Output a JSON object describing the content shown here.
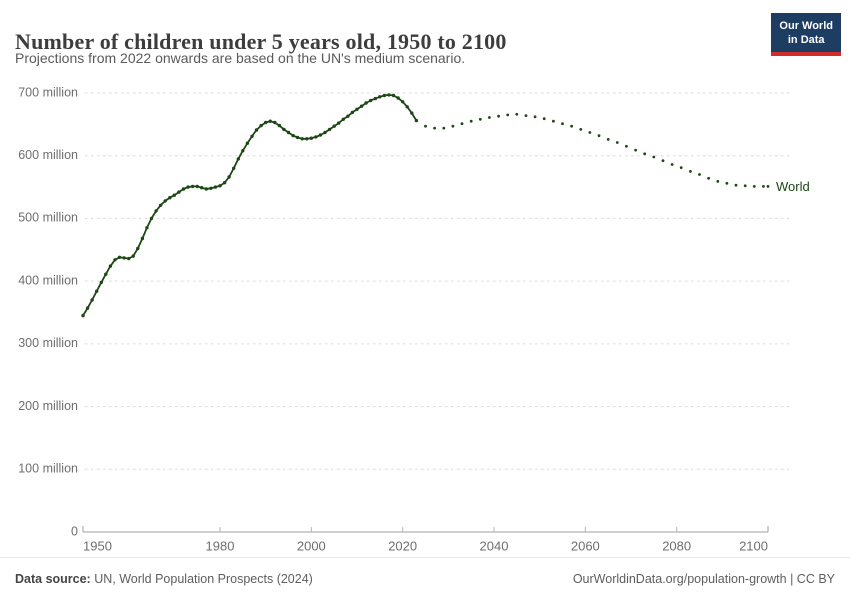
{
  "header": {
    "title": "Number of children under 5 years old, 1950 to 2100",
    "subtitle": "Projections from 2022 onwards are based on the UN's medium scenario.",
    "logo": {
      "line1": "Our World",
      "line2": "in Data",
      "bg_color": "#1d3d63",
      "accent_color": "#d42b2b"
    }
  },
  "chart_data": {
    "type": "line",
    "title": "Number of children under 5 years old, 1950 to 2100",
    "series_label": "World",
    "line_color": "#1d4715",
    "unit": "million",
    "xlabel": "",
    "ylabel": "",
    "x_range": [
      1950,
      2100
    ],
    "y_range": [
      0,
      700000000
    ],
    "grid": "horizontal dashed",
    "legend_position": "right end of line",
    "projection_style": "dotted from 2023 onwards",
    "x_ticks": [
      1950,
      1980,
      2000,
      2020,
      2040,
      2060,
      2080,
      2100
    ],
    "y_ticks": [
      {
        "v": 0,
        "label": "0"
      },
      {
        "v": 100,
        "label": "100 million"
      },
      {
        "v": 200,
        "label": "200 million"
      },
      {
        "v": 300,
        "label": "300 million"
      },
      {
        "v": 400,
        "label": "400 million"
      },
      {
        "v": 500,
        "label": "500 million"
      },
      {
        "v": 600,
        "label": "600 million"
      },
      {
        "v": 700,
        "label": "700 million"
      }
    ],
    "series": [
      {
        "name": "World (historical, millions)",
        "style": "solid",
        "years": [
          1950,
          1951,
          1952,
          1953,
          1954,
          1955,
          1956,
          1957,
          1958,
          1959,
          1960,
          1961,
          1962,
          1963,
          1964,
          1965,
          1966,
          1967,
          1968,
          1969,
          1970,
          1971,
          1972,
          1973,
          1974,
          1975,
          1976,
          1977,
          1978,
          1979,
          1980,
          1981,
          1982,
          1983,
          1984,
          1985,
          1986,
          1987,
          1988,
          1989,
          1990,
          1991,
          1992,
          1993,
          1994,
          1995,
          1996,
          1997,
          1998,
          1999,
          2000,
          2001,
          2002,
          2003,
          2004,
          2005,
          2006,
          2007,
          2008,
          2009,
          2010,
          2011,
          2012,
          2013,
          2014,
          2015,
          2016,
          2017,
          2018,
          2019,
          2020,
          2021,
          2022,
          2023
        ],
        "values": [
          345,
          357,
          370,
          384,
          398,
          411,
          424,
          434,
          438,
          437,
          436,
          440,
          452,
          468,
          485,
          500,
          512,
          521,
          528,
          533,
          537,
          542,
          547,
          550,
          551,
          551,
          549,
          547,
          548,
          550,
          552,
          557,
          566,
          580,
          595,
          608,
          620,
          631,
          641,
          648,
          653,
          655,
          653,
          648,
          642,
          637,
          632,
          629,
          627,
          627,
          628,
          630,
          633,
          637,
          642,
          647,
          652,
          658,
          663,
          669,
          674,
          679,
          684,
          688,
          691,
          694,
          696,
          697,
          696,
          692,
          686,
          678,
          668,
          656
        ]
      },
      {
        "name": "World (UN medium projection, millions)",
        "style": "dotted",
        "years": [
          2023,
          2025,
          2027,
          2029,
          2031,
          2033,
          2035,
          2037,
          2039,
          2041,
          2043,
          2045,
          2047,
          2049,
          2051,
          2053,
          2055,
          2057,
          2059,
          2061,
          2063,
          2065,
          2067,
          2069,
          2071,
          2073,
          2075,
          2077,
          2079,
          2081,
          2083,
          2085,
          2087,
          2089,
          2091,
          2093,
          2095,
          2097,
          2099,
          2100
        ],
        "values": [
          656,
          647,
          644,
          644,
          647,
          651,
          655,
          658,
          661,
          663,
          665,
          666,
          664,
          662,
          659,
          655,
          651,
          647,
          642,
          637,
          632,
          626,
          621,
          615,
          609,
          603,
          598,
          592,
          586,
          581,
          575,
          570,
          564,
          559,
          556,
          553,
          552,
          551,
          551,
          551
        ]
      }
    ]
  },
  "footer": {
    "source_label": "Data source:",
    "source_text": " UN, World Population Prospects (2024)",
    "credit": "OurWorldinData.org/population-growth | CC BY"
  }
}
